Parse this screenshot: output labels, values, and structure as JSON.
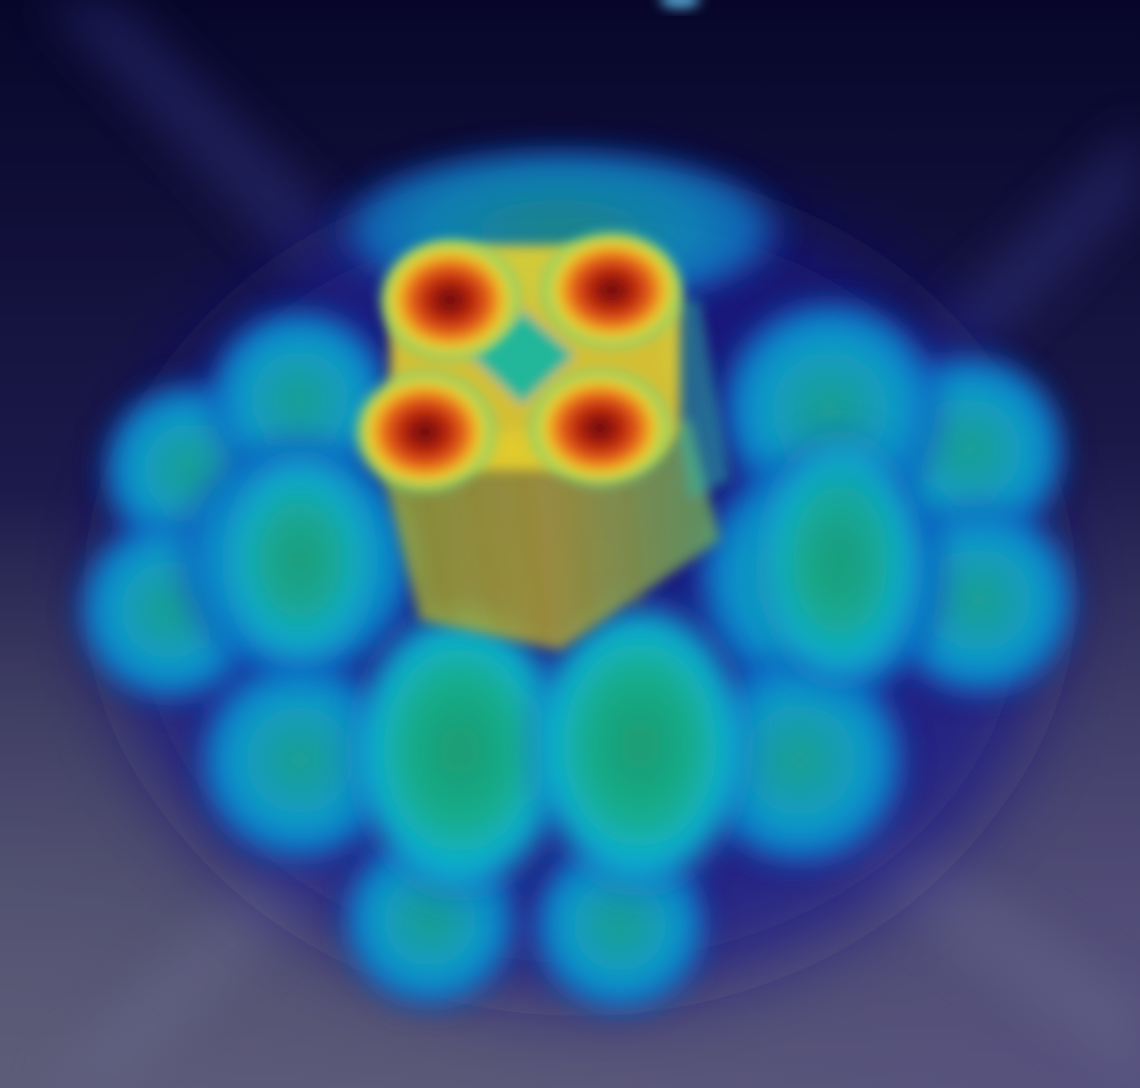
{
  "scene": {
    "description_free": true,
    "palette": {
      "bg_top": "#07062a",
      "bg_mid": "#1d1a4e",
      "bg_bottom": "#5a5878",
      "halo": "#1a1fa8",
      "glow": "#1c36c9",
      "cyan": "#0e9fd0",
      "teal": "#11b59a",
      "green": "#1fa57a",
      "yellow": "#e8d52a",
      "orange": "#ea6a17",
      "red": "#c2250f",
      "darkred": "#6a0a0a"
    }
  }
}
